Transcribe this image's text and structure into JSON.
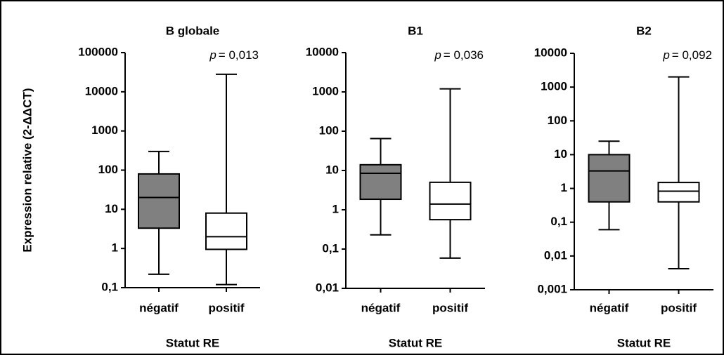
{
  "chart_data": [
    {
      "type": "box",
      "title": "B globale",
      "ylabel": "Expression relative (2-ΔΔCT)",
      "xlabel": "Statut RE",
      "p_symbol": "p",
      "p_text": "= 0,013",
      "log_scale": true,
      "categories": [
        "négatif",
        "positif"
      ],
      "colors": [
        "#808080",
        "#ffffff"
      ],
      "stats": [
        {
          "low": 0.22,
          "q1": 3.3,
          "median": 20,
          "q3": 80,
          "high": 300
        },
        {
          "low": 0.12,
          "q1": 0.95,
          "median": 2,
          "q3": 8,
          "high": 28000
        }
      ],
      "ylim": [
        0.1,
        100000
      ],
      "yticks": [
        {
          "value": 0.1,
          "label": "0,1"
        },
        1,
        10,
        100,
        1000,
        10000,
        100000
      ]
    },
    {
      "type": "box",
      "title": "B1",
      "xlabel": "Statut RE",
      "p_symbol": "p",
      "p_text": "= 0,036",
      "log_scale": true,
      "categories": [
        "négatif",
        "positif"
      ],
      "colors": [
        "#808080",
        "#ffffff"
      ],
      "stats": [
        {
          "low": 0.23,
          "q1": 1.85,
          "median": 8.5,
          "q3": 14,
          "high": 65
        },
        {
          "low": 0.059,
          "q1": 0.56,
          "median": 1.4,
          "q3": 5,
          "high": 1200
        }
      ],
      "ylim": [
        0.01,
        10000
      ],
      "yticks": [
        {
          "value": 0.01,
          "label": "0,01"
        },
        {
          "value": 0.1,
          "label": "0,1"
        },
        1,
        10,
        100,
        1000,
        10000
      ]
    },
    {
      "type": "box",
      "title": "B2",
      "xlabel": "Statut RE",
      "p_symbol": "p",
      "p_text": "= 0,092",
      "log_scale": true,
      "categories": [
        "négatif",
        "positif"
      ],
      "colors": [
        "#808080",
        "#ffffff"
      ],
      "stats": [
        {
          "low": 0.06,
          "q1": 0.4,
          "median": 3.3,
          "q3": 10,
          "high": 25
        },
        {
          "low": 0.0042,
          "q1": 0.4,
          "median": 0.83,
          "q3": 1.5,
          "high": 2000
        }
      ],
      "ylim": [
        0.001,
        10000
      ],
      "yticks": [
        {
          "value": 0.001,
          "label": "0,001"
        },
        {
          "value": 0.01,
          "label": "0,01"
        },
        {
          "value": 0.1,
          "label": "0,1"
        },
        1,
        10,
        100,
        1000,
        10000
      ]
    }
  ]
}
